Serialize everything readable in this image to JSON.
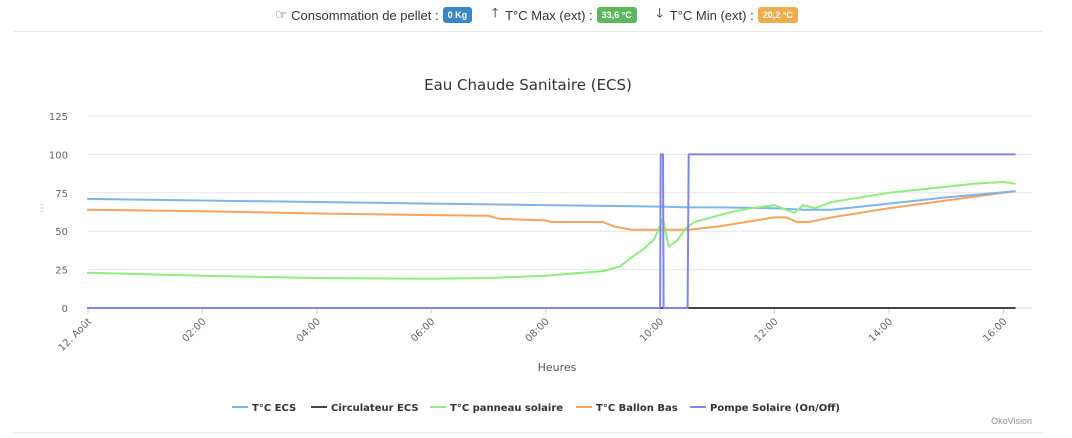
{
  "header": {
    "pellet_label": "Consommation de pellet :",
    "pellet_value": "0 Kg",
    "tmax_label": "T°C Max (ext) :",
    "tmax_value": "33,6 °C",
    "tmin_label": "T°C Min (ext) :",
    "tmin_value": "20,2 °C",
    "icons": [
      "hand-pointer-icon",
      "arrow-up-icon",
      "arrow-down-icon"
    ],
    "colors": {
      "pellet": "#3a87c8",
      "tmax": "#5cb85c",
      "tmin": "#f0ad4e"
    }
  },
  "menu_label": "⋮",
  "credit": "OkoVision",
  "chart_data": {
    "type": "line",
    "title": "Eau Chaude Sanitaire (ECS)",
    "xlabel": "Heures",
    "ylabel": "",
    "xlim": [
      0,
      16.5
    ],
    "ylim": [
      0,
      125
    ],
    "yticks": [
      0,
      25,
      50,
      75,
      100,
      125
    ],
    "xticks": [
      {
        "value": 0,
        "label": "12. Août"
      },
      {
        "value": 2,
        "label": "02:00"
      },
      {
        "value": 4,
        "label": "04:00"
      },
      {
        "value": 6,
        "label": "06:00"
      },
      {
        "value": 8,
        "label": "08:00"
      },
      {
        "value": 10,
        "label": "10:00"
      },
      {
        "value": 12,
        "label": "12:00"
      },
      {
        "value": 14,
        "label": "14:00"
      },
      {
        "value": 16,
        "label": "16:00"
      }
    ],
    "grid": true,
    "legend_position": "bottom",
    "series": [
      {
        "name": "T°C ECS",
        "color": "#7cb5ec",
        "x": [
          0,
          2,
          4,
          6,
          8,
          9,
          10,
          10.5,
          11,
          12,
          12.5,
          13,
          14,
          15,
          16.2
        ],
        "y": [
          71,
          70,
          69,
          68,
          67,
          66.5,
          66,
          65.5,
          65.5,
          65,
          64,
          64,
          68,
          72,
          76
        ]
      },
      {
        "name": "Circulateur ECS",
        "color": "#434348",
        "x": [
          0,
          16.2
        ],
        "y": [
          0,
          0
        ]
      },
      {
        "name": "T°C panneau solaire",
        "color": "#90ed7d",
        "x": [
          0,
          2,
          4,
          6,
          7,
          8,
          8.5,
          9,
          9.3,
          9.5,
          9.7,
          9.9,
          10.05,
          10.15,
          10.3,
          10.45,
          10.6,
          10.8,
          11,
          11.3,
          11.6,
          12,
          12.2,
          12.35,
          12.5,
          12.7,
          13,
          14,
          15,
          15.5,
          16,
          16.2
        ],
        "y": [
          23,
          21,
          19.5,
          19,
          19.5,
          21,
          22.5,
          24,
          27,
          33,
          38,
          45,
          58,
          40,
          44,
          52,
          56,
          58,
          60,
          63,
          65,
          67,
          64,
          62,
          67,
          65,
          69,
          75,
          79,
          81,
          82,
          81
        ]
      },
      {
        "name": "T°C Ballon Bas",
        "color": "#f7a35c",
        "x": [
          0,
          2,
          4,
          6,
          7,
          7.2,
          8,
          8.1,
          9,
          9.2,
          9.5,
          10,
          10.5,
          11,
          12,
          12.2,
          12.4,
          12.6,
          13,
          14,
          15,
          16.2
        ],
        "y": [
          64,
          63,
          61.5,
          60.5,
          60,
          58,
          57,
          56,
          56,
          53,
          51,
          51,
          51,
          53,
          59,
          59,
          56,
          56,
          59,
          65,
          70,
          76
        ]
      },
      {
        "name": "Pompe Solaire (On/Off)",
        "color": "#8085e9",
        "x": [
          0,
          10,
          10.01,
          10.05,
          10.06,
          10.48,
          10.5,
          16.2
        ],
        "y": [
          0,
          0,
          100,
          100,
          0,
          0,
          100,
          100
        ]
      }
    ]
  }
}
